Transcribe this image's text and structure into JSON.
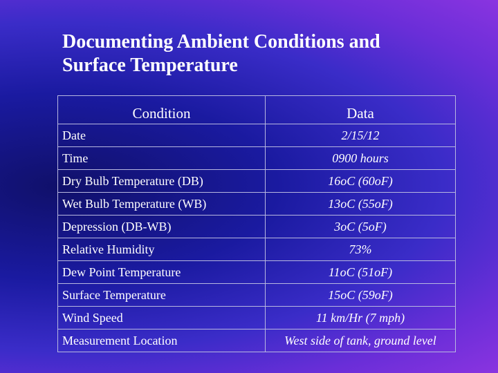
{
  "title": {
    "line1": "Documenting Ambient Conditions and",
    "line2": "Surface Temperature"
  },
  "table": {
    "headers": [
      "Condition",
      "Data"
    ],
    "rows": [
      {
        "condition": "Date",
        "data": "2/15/12"
      },
      {
        "condition": "Time",
        "data": "0900 hours"
      },
      {
        "condition": "Dry Bulb Temperature (DB)",
        "data": "16oC (60oF)"
      },
      {
        "condition": "Wet Bulb Temperature (WB)",
        "data": "13oC (55oF)"
      },
      {
        "condition": "Depression (DB-WB)",
        "data": "3oC (5oF)"
      },
      {
        "condition": "Relative Humidity",
        "data": "73%"
      },
      {
        "condition": "Dew Point Temperature",
        "data": "11oC (51oF)"
      },
      {
        "condition": "Surface Temperature",
        "data": "15oC (59oF)"
      },
      {
        "condition": "Wind Speed",
        "data": "11 km/Hr (7 mph)"
      },
      {
        "condition": "Measurement Location",
        "data": "West side of tank, ground level"
      }
    ]
  }
}
